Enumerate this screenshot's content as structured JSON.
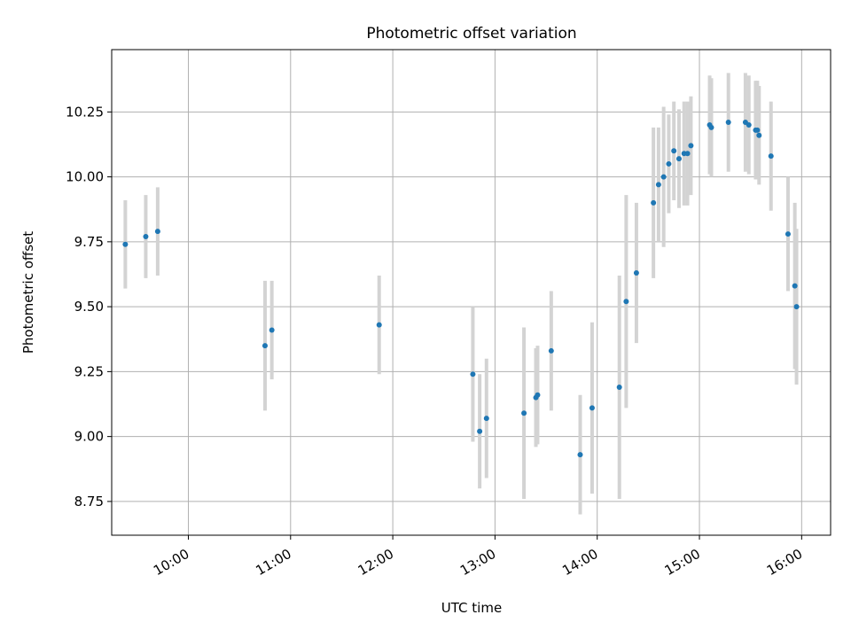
{
  "chart_data": {
    "type": "scatter",
    "title": "Photometric offset variation",
    "xlabel": "UTC time",
    "ylabel": "Photometric offset",
    "x_ticks": [
      "10:00",
      "11:00",
      "12:00",
      "13:00",
      "14:00",
      "15:00",
      "16:00"
    ],
    "y_ticks": [
      "8.75",
      "9.00",
      "9.25",
      "9.50",
      "9.75",
      "10.00",
      "10.25"
    ],
    "xlim": [
      "09:15",
      "16:17"
    ],
    "ylim": [
      8.62,
      10.49
    ],
    "grid": true,
    "point_color": "#1f77b4",
    "errorbar_color": "#d3d3d3",
    "points": [
      {
        "time": "09:23",
        "y": 9.74,
        "err": 0.17
      },
      {
        "time": "09:35",
        "y": 9.77,
        "err": 0.16
      },
      {
        "time": "09:42",
        "y": 9.79,
        "err": 0.17
      },
      {
        "time": "10:45",
        "y": 9.35,
        "err": 0.25
      },
      {
        "time": "10:49",
        "y": 9.41,
        "err": 0.19
      },
      {
        "time": "11:52",
        "y": 9.43,
        "err": 0.19
      },
      {
        "time": "12:47",
        "y": 9.24,
        "err": 0.26
      },
      {
        "time": "12:51",
        "y": 9.02,
        "err": 0.22
      },
      {
        "time": "12:55",
        "y": 9.07,
        "err": 0.23
      },
      {
        "time": "13:17",
        "y": 9.09,
        "err": 0.33
      },
      {
        "time": "13:24",
        "y": 9.15,
        "err": 0.19
      },
      {
        "time": "13:25",
        "y": 9.16,
        "err": 0.19
      },
      {
        "time": "13:33",
        "y": 9.33,
        "err": 0.23
      },
      {
        "time": "13:50",
        "y": 8.93,
        "err": 0.23
      },
      {
        "time": "13:57",
        "y": 9.11,
        "err": 0.33
      },
      {
        "time": "14:13",
        "y": 9.19,
        "err": 0.43
      },
      {
        "time": "14:17",
        "y": 9.52,
        "err": 0.41
      },
      {
        "time": "14:23",
        "y": 9.63,
        "err": 0.27
      },
      {
        "time": "14:33",
        "y": 9.9,
        "err": 0.29
      },
      {
        "time": "14:36",
        "y": 9.97,
        "err": 0.22
      },
      {
        "time": "14:39",
        "y": 10.0,
        "err": 0.27
      },
      {
        "time": "14:42",
        "y": 10.05,
        "err": 0.19
      },
      {
        "time": "14:45",
        "y": 10.1,
        "err": 0.19
      },
      {
        "time": "14:48",
        "y": 10.07,
        "err": 0.19
      },
      {
        "time": "14:51",
        "y": 10.09,
        "err": 0.2
      },
      {
        "time": "14:53",
        "y": 10.09,
        "err": 0.2
      },
      {
        "time": "14:55",
        "y": 10.12,
        "err": 0.19
      },
      {
        "time": "15:06",
        "y": 10.2,
        "err": 0.19
      },
      {
        "time": "15:07",
        "y": 10.19,
        "err": 0.19
      },
      {
        "time": "15:17",
        "y": 10.21,
        "err": 0.19
      },
      {
        "time": "15:27",
        "y": 10.21,
        "err": 0.19
      },
      {
        "time": "15:29",
        "y": 10.2,
        "err": 0.19
      },
      {
        "time": "15:33",
        "y": 10.18,
        "err": 0.19
      },
      {
        "time": "15:34",
        "y": 10.18,
        "err": 0.19
      },
      {
        "time": "15:35",
        "y": 10.16,
        "err": 0.19
      },
      {
        "time": "15:42",
        "y": 10.08,
        "err": 0.21
      },
      {
        "time": "15:52",
        "y": 9.78,
        "err": 0.22
      },
      {
        "time": "15:56",
        "y": 9.58,
        "err": 0.32
      },
      {
        "time": "15:57",
        "y": 9.5,
        "err": 0.3
      }
    ]
  }
}
